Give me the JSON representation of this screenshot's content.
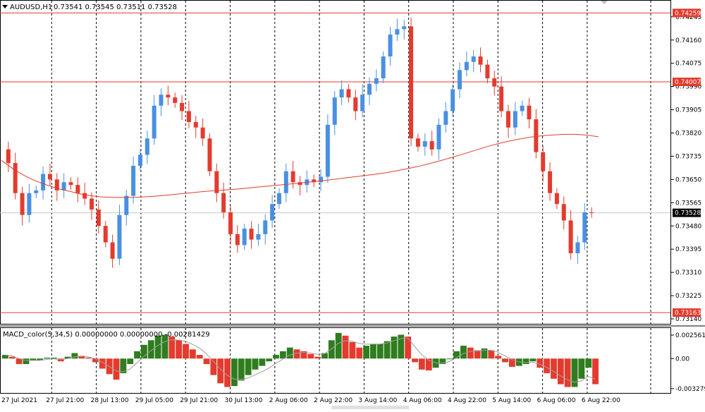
{
  "header": {
    "symbol": "AUDUSD,H1",
    "values": "0.73541 0.73545 0.73511 0.73528"
  },
  "macd_header": {
    "label": "MACD_color(5,34,5) 0.00000000 0.00000000 -0.00281429"
  },
  "colors": {
    "bull": "#4a90e2",
    "bear": "#e33b2e",
    "ma_line": "#e33b2e",
    "hline": "#e33b2e",
    "price_line": "#c8c8c8",
    "macd_pos": "#2e7d1e",
    "macd_neg": "#e33b2e",
    "macd_signal": "#9e9e9e",
    "grid": "#000000"
  },
  "chart_data": {
    "type": "candlestick",
    "price_axis_ticks": [
      "0.74245",
      "0.74160",
      "0.74075",
      "0.73990",
      "0.73905",
      "0.73820",
      "0.73735",
      "0.73650",
      "0.73565",
      "0.73480",
      "0.73395",
      "0.73310",
      "0.73225",
      "0.73140"
    ],
    "ylim": [
      0.7314,
      0.7426
    ],
    "horizontal_levels": [
      {
        "label": "0.74259",
        "value": 0.74259
      },
      {
        "label": "0.74007",
        "value": 0.74007
      },
      {
        "label": "0.73163",
        "value": 0.73163
      }
    ],
    "current_price": {
      "label": "0.73528",
      "value": 0.73528
    },
    "x_axis_labels": [
      "27 Jul 2021",
      "27 Jul 21:00",
      "28 Jul 13:00",
      "29 Jul 05:00",
      "29 Jul 21:00",
      "30 Jul 13:00",
      "2 Aug 06:00",
      "2 Aug 22:00",
      "3 Aug 14:00",
      "4 Aug 06:00",
      "4 Aug 22:00",
      "5 Aug 14:00",
      "6 Aug 06:00",
      "6 Aug 22:00"
    ],
    "price_series": [
      0.7376,
      0.7371,
      0.736,
      0.7352,
      0.736,
      0.7361,
      0.7367,
      0.7365,
      0.7361,
      0.7364,
      0.7363,
      0.736,
      0.7358,
      0.7354,
      0.7348,
      0.7342,
      0.7336,
      0.7352,
      0.7359,
      0.737,
      0.7374,
      0.738,
      0.7392,
      0.7396,
      0.7395,
      0.7393,
      0.739,
      0.7386,
      0.7384,
      0.738,
      0.7368,
      0.736,
      0.7353,
      0.7345,
      0.7341,
      0.7347,
      0.7343,
      0.7345,
      0.735,
      0.7356,
      0.736,
      0.7368,
      0.7364,
      0.7363,
      0.7365,
      0.7364,
      0.7366,
      0.7385,
      0.7395,
      0.7398,
      0.7395,
      0.739,
      0.7396,
      0.74,
      0.7402,
      0.741,
      0.7418,
      0.742,
      0.7421,
      0.738,
      0.7377,
      0.7379,
      0.7376,
      0.7385,
      0.739,
      0.7398,
      0.7405,
      0.7408,
      0.741,
      0.7407,
      0.7402,
      0.7399,
      0.739,
      0.7384,
      0.739,
      0.7392,
      0.7387,
      0.7375,
      0.7368,
      0.736,
      0.7356,
      0.735,
      0.7338,
      0.7342,
      0.7353,
      0.73528
    ],
    "ma_series": [
      0.7372,
      0.7369,
      0.73665,
      0.73645,
      0.7363,
      0.73617,
      0.73607,
      0.73597,
      0.7359,
      0.73586,
      0.73584,
      0.73584,
      0.73585,
      0.73587,
      0.7359,
      0.73594,
      0.73598,
      0.73602,
      0.73606,
      0.73609,
      0.73612,
      0.73615,
      0.73619,
      0.73623,
      0.73627,
      0.73631,
      0.73635,
      0.73639,
      0.73643,
      0.73648,
      0.73653,
      0.73658,
      0.73663,
      0.73668,
      0.73674,
      0.73681,
      0.73689,
      0.73698,
      0.73708,
      0.73719,
      0.73731,
      0.73743,
      0.73756,
      0.73769,
      0.7378,
      0.7379,
      0.73798,
      0.73805,
      0.7381,
      0.73813,
      0.73815,
      0.73815,
      0.73812,
      0.73806
    ],
    "macd_axis_ticks": [
      "0.0025619",
      "0.00",
      "-0.003279"
    ],
    "macd_ylim": [
      -0.0036,
      0.0031
    ],
    "macd_series": [
      0.0004,
      0.0002,
      -0.0006,
      -0.0006,
      -0.0002,
      -0.0002,
      0.0001,
      0.0001,
      -0.0003,
      0.0002,
      0.0006,
      0.0003,
      0.0001,
      -0.0004,
      -0.0011,
      -0.0017,
      -0.0023,
      -0.0016,
      -0.0006,
      0.0008,
      0.0015,
      0.002,
      0.0025,
      0.0026,
      0.0024,
      0.002,
      0.0016,
      0.001,
      0.0004,
      -0.0006,
      -0.0018,
      -0.0027,
      -0.0031,
      -0.003,
      -0.0024,
      -0.0018,
      -0.0012,
      -0.0008,
      -0.0003,
      0.0004,
      0.0008,
      0.0012,
      0.001,
      0.0008,
      0.0005,
      0.0002,
      0.0006,
      0.002,
      0.0028,
      0.0025,
      0.0018,
      0.0012,
      0.0014,
      0.0016,
      0.0016,
      0.0019,
      0.0024,
      0.0026,
      0.0024,
      -0.0004,
      -0.0012,
      -0.0013,
      -0.001,
      -0.0006,
      0.0,
      0.0008,
      0.0014,
      0.0012,
      0.0009,
      0.0011,
      0.0009,
      0.0003,
      -0.0004,
      -0.0009,
      -0.0008,
      -0.0006,
      -0.0003,
      -0.001,
      -0.0016,
      -0.0022,
      -0.0028,
      -0.0031,
      -0.0031,
      -0.0022,
      -0.001,
      -0.0028
    ]
  }
}
